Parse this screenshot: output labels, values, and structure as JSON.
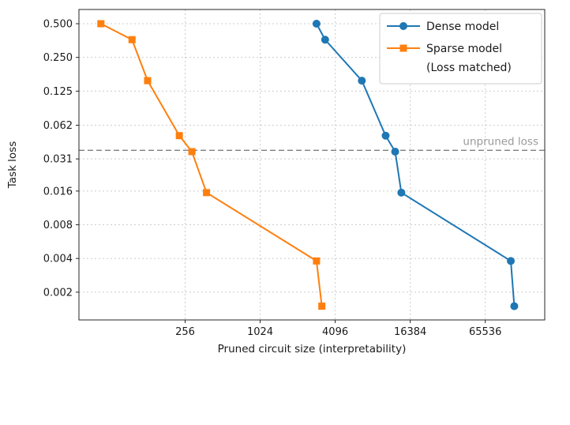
{
  "chart_data": {
    "type": "line",
    "title": "",
    "xlabel": "Pruned circuit size (interpretability)",
    "ylabel": "Task loss",
    "x_scale": "log2",
    "y_scale": "log2",
    "xlim": [
      36,
      196608
    ],
    "ylim": [
      0.00113,
      0.67
    ],
    "x_ticks": [
      256,
      1024,
      4096,
      16384,
      65536
    ],
    "x_tick_labels": [
      "256",
      "1024",
      "4096",
      "16384",
      "65536"
    ],
    "y_ticks": [
      0.5,
      0.25,
      0.125,
      0.062,
      0.031,
      0.016,
      0.008,
      0.004,
      0.002
    ],
    "y_tick_labels": [
      "0.500",
      "0.250",
      "0.125",
      "0.062",
      "0.031",
      "0.016",
      "0.008",
      "0.004",
      "0.002"
    ],
    "grid": true,
    "legend_position": "upper right",
    "series": [
      {
        "name": "Dense model",
        "legend_lines": [
          "Dense model"
        ],
        "color": "#1f77b4",
        "marker": "circle",
        "x": [
          2900,
          3400,
          6700,
          10400,
          12400,
          13900,
          105000,
          112000
        ],
        "y": [
          0.5,
          0.36,
          0.155,
          0.05,
          0.036,
          0.0155,
          0.0038,
          0.0015
        ]
      },
      {
        "name": "Sparse model (Loss matched)",
        "legend_lines": [
          "Sparse model",
          "(Loss matched)"
        ],
        "color": "#ff7f0e",
        "marker": "square",
        "x": [
          54,
          96,
          128,
          230,
          290,
          380,
          2900,
          3200
        ],
        "y": [
          0.5,
          0.36,
          0.155,
          0.05,
          0.036,
          0.0155,
          0.0038,
          0.0015
        ]
      }
    ],
    "annotations": [
      {
        "type": "hline",
        "y": 0.037,
        "label": "unpruned loss",
        "line_color": "#7f7f7f",
        "label_color": "#999999"
      }
    ],
    "style": {
      "background": "#ffffff",
      "grid_color": "#cccccc",
      "spine_color": "#262626",
      "text_color": "#1a1a1a",
      "legend_border": "#cccccc",
      "legend_background": "#ffffff"
    }
  }
}
